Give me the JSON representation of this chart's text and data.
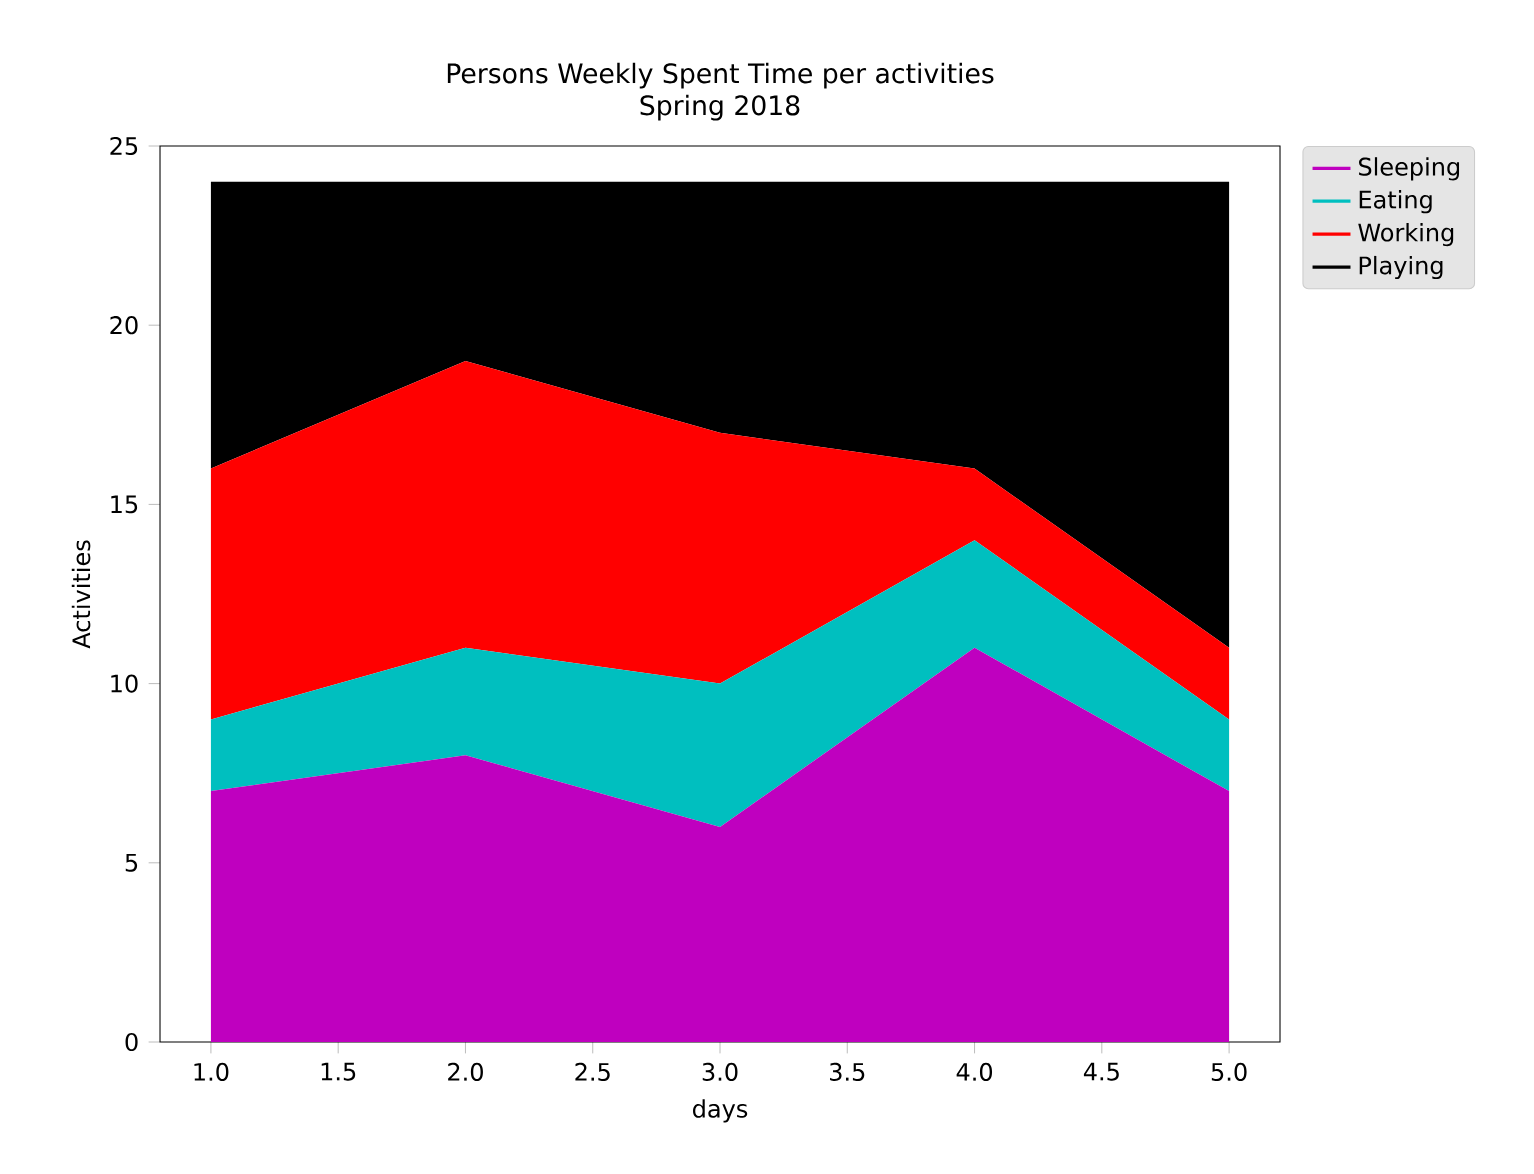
{
  "chart_data": {
    "type": "area",
    "title": "Persons Weekly Spent Time  per activities",
    "subtitle": "Spring 2018",
    "xlabel": "days",
    "ylabel": "Activities",
    "stacked": true,
    "x": [
      1,
      2,
      3,
      4,
      5
    ],
    "series": [
      {
        "name": "Sleeping",
        "color": "#bf00bf",
        "values": [
          7,
          8,
          6,
          11,
          7
        ]
      },
      {
        "name": "Eating",
        "color": "#00bfbf",
        "values": [
          2,
          3,
          4,
          3,
          2
        ]
      },
      {
        "name": "Working",
        "color": "#ff0000",
        "values": [
          7,
          8,
          7,
          2,
          2
        ]
      },
      {
        "name": "Playing",
        "color": "#000000",
        "values": [
          8,
          5,
          7,
          8,
          13
        ]
      }
    ],
    "xlim": [
      0.8,
      5.2
    ],
    "ylim": [
      0,
      25
    ],
    "xticks": [
      {
        "value": 1,
        "label": "1.0"
      },
      {
        "value": 1.5,
        "label": "1.5"
      },
      {
        "value": 2,
        "label": "2.0"
      },
      {
        "value": 2.5,
        "label": "2.5"
      },
      {
        "value": 3,
        "label": "3.0"
      },
      {
        "value": 3.5,
        "label": "3.5"
      },
      {
        "value": 4,
        "label": "4.0"
      },
      {
        "value": 4.5,
        "label": "4.5"
      },
      {
        "value": 5,
        "label": "5.0"
      }
    ],
    "yticks": [
      0,
      5,
      10,
      15,
      20,
      25
    ],
    "legend": "right"
  }
}
